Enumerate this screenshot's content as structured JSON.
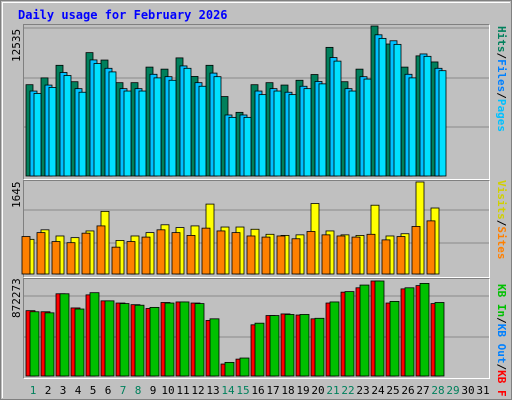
{
  "title": "Daily usage for February 2026",
  "colors": {
    "hits": "#00805c",
    "files": "#00c0ff",
    "pages": "#00e0ff",
    "visits": "#ffff00",
    "sites": "#ff8000",
    "kbin": "#ff0000",
    "kbout": "#00c000",
    "day_weekday": "#000000",
    "day_weekend": "#00805c"
  },
  "legend": {
    "top": [
      {
        "text": "Hits",
        "color": "#00805c"
      },
      {
        "text": "/",
        "color": "#000000"
      },
      {
        "text": "Files",
        "color": "#0080ff"
      },
      {
        "text": "/",
        "color": "#000000"
      },
      {
        "text": "Pages",
        "color": "#00c0ff"
      }
    ],
    "middle": [
      {
        "text": "Visits",
        "color": "#d0d000"
      },
      {
        "text": "/",
        "color": "#000000"
      },
      {
        "text": "Sites",
        "color": "#ff8000"
      }
    ],
    "bottom": [
      {
        "text": "KB In",
        "color": "#00c000"
      },
      {
        "text": "/",
        "color": "#000000"
      },
      {
        "text": "KB Out",
        "color": "#0080ff"
      },
      {
        "text": "/",
        "color": "#000000"
      },
      {
        "text": "KB F",
        "color": "#ff0000"
      }
    ]
  },
  "chart_data": {
    "type": "bar",
    "title": "Daily usage for February 2026",
    "categories": [
      "1",
      "2",
      "3",
      "4",
      "5",
      "6",
      "7",
      "8",
      "9",
      "10",
      "11",
      "12",
      "13",
      "14",
      "15",
      "16",
      "17",
      "18",
      "19",
      "20",
      "21",
      "22",
      "23",
      "24",
      "25",
      "26",
      "27",
      "28",
      "29",
      "30",
      "31"
    ],
    "weekend_days": [
      1,
      7,
      8,
      14,
      15,
      21,
      22,
      28,
      29
    ],
    "panels": [
      {
        "name": "hits-files-pages",
        "ymax_label": "12535",
        "ymax": 12535,
        "series": [
          {
            "name": "Hits",
            "values": [
              7630,
              8200,
              9250,
              7880,
              10310,
              9690,
              7800,
              7800,
              9100,
              8930,
              9870,
              8320,
              9250,
              6640,
              5320,
              7630,
              7800,
              7600,
              8000,
              8480,
              10750,
              7880,
              8930,
              12535,
              11030,
              9100,
              10040,
              9530,
              null,
              null,
              null
            ]
          },
          {
            "name": "Files",
            "values": [
              7100,
              7600,
              8650,
              7300,
              9700,
              9000,
              7300,
              7300,
              8500,
              8300,
              9200,
              7800,
              8600,
              5100,
              5100,
              7100,
              7300,
              7000,
              7500,
              7900,
              9900,
              7300,
              8300,
              11800,
              11300,
              8500,
              10200,
              9000,
              null,
              null,
              null
            ]
          },
          {
            "name": "Pages",
            "values": [
              6900,
              7400,
              8400,
              7000,
              9400,
              8700,
              7100,
              7100,
              8200,
              8000,
              9000,
              7500,
              8300,
              4900,
              4900,
              6800,
              7100,
              6800,
              7300,
              7700,
              9600,
              7100,
              8100,
              11500,
              11000,
              8200,
              10000,
              8800,
              null,
              null,
              null
            ]
          }
        ]
      },
      {
        "name": "visits-sites",
        "ymax_label": "1645",
        "ymax": 1645,
        "series": [
          {
            "name": "Visits",
            "values": [
              620,
              790,
              680,
              650,
              770,
              1120,
              600,
              680,
              740,
              880,
              830,
              860,
              1250,
              840,
              840,
              800,
              710,
              690,
              700,
              1260,
              770,
              700,
              690,
              1230,
              680,
              720,
              1645,
              1180,
              null,
              null,
              null
            ]
          },
          {
            "name": "Sites",
            "values": [
              670,
              740,
              580,
              560,
              730,
              860,
              480,
              580,
              660,
              790,
              740,
              690,
              820,
              770,
              740,
              680,
              660,
              680,
              630,
              760,
              700,
              680,
              660,
              710,
              610,
              670,
              850,
              950,
              null,
              null,
              null
            ]
          }
        ]
      },
      {
        "name": "kbin-kbout-kbf",
        "ymax_label": "872273",
        "ymax": 872273,
        "series": [
          {
            "name": "KB F",
            "values": [
              600000,
              590000,
              755000,
              625000,
              745000,
              690000,
              670000,
              655000,
              620000,
              675000,
              680000,
              670000,
              510000,
              110000,
              155000,
              470000,
              555000,
              570000,
              560000,
              525000,
              670000,
              770000,
              810000,
              872273,
              670000,
              800000,
              830000,
              665000,
              null,
              null,
              null
            ]
          },
          {
            "name": "KB In",
            "values": [
              590000,
              580000,
              755000,
              615000,
              765000,
              690000,
              665000,
              650000,
              630000,
              670000,
              680000,
              665000,
              525000,
              125000,
              165000,
              485000,
              555000,
              565000,
              565000,
              530000,
              680000,
              775000,
              835000,
              872273,
              685000,
              810000,
              850000,
              675000,
              null,
              null,
              null
            ]
          }
        ]
      }
    ]
  }
}
